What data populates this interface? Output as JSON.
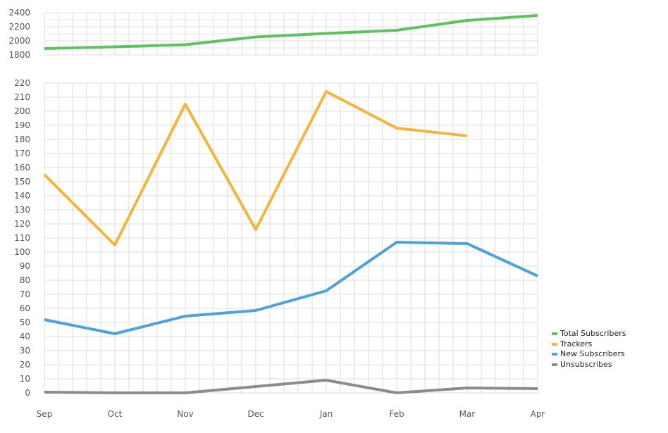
{
  "chart_data": [
    {
      "type": "line",
      "panel": "top",
      "x": [
        "Sep",
        "Oct",
        "Nov",
        "Dec",
        "Jan",
        "Feb",
        "Mar",
        "Apr"
      ],
      "ylim": [
        1800,
        2400
      ],
      "yticks": [
        1800,
        2000,
        2200,
        2400
      ],
      "grid": true,
      "series": [
        {
          "name": "Total Subscribers",
          "color": "#5cc35f",
          "values": [
            1890,
            1915,
            1945,
            2055,
            2105,
            2150,
            2290,
            2360
          ]
        }
      ]
    },
    {
      "type": "line",
      "panel": "bottom",
      "x": [
        "Sep",
        "Oct",
        "Nov",
        "Dec",
        "Jan",
        "Feb",
        "Mar",
        "Apr"
      ],
      "ylim": [
        0,
        220
      ],
      "yticks": [
        0,
        10,
        20,
        30,
        40,
        50,
        60,
        70,
        80,
        90,
        100,
        110,
        120,
        130,
        140,
        150,
        160,
        170,
        180,
        190,
        200,
        210,
        220
      ],
      "grid": true,
      "series": [
        {
          "name": "Trackers",
          "color": "#f5b43c",
          "values": [
            155,
            105,
            205,
            116,
            214,
            188,
            182.5,
            null
          ]
        },
        {
          "name": "New Subscribers",
          "color": "#4ea2dc",
          "values": [
            52,
            42,
            54.5,
            58.5,
            72.5,
            107,
            106,
            83
          ]
        },
        {
          "name": "Unsubscribes",
          "color": "#8c8c8c",
          "values": [
            0.5,
            0,
            0,
            4.5,
            9,
            0,
            3.5,
            3
          ]
        }
      ]
    }
  ],
  "legend": {
    "placement": "bottom-right",
    "items": [
      {
        "label": "Total Subscribers",
        "color": "#5cc35f"
      },
      {
        "label": "Trackers",
        "color": "#f5b43c"
      },
      {
        "label": "New Subscribers",
        "color": "#4ea2dc"
      },
      {
        "label": "Unsubscribes",
        "color": "#8c8c8c"
      }
    ]
  }
}
